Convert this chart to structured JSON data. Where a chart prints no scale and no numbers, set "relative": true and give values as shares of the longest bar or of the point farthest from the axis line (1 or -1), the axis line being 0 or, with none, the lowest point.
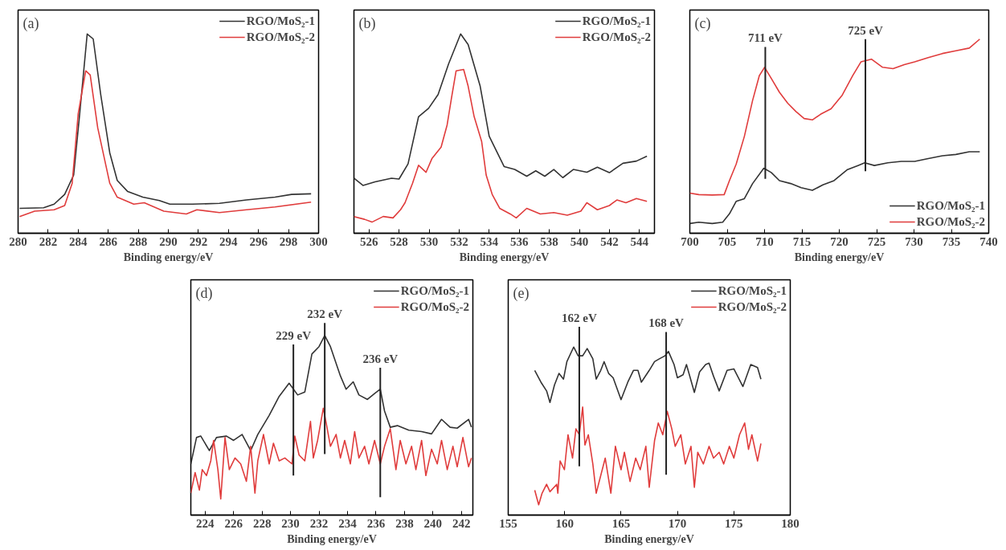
{
  "chart_data": [
    {
      "type": "line",
      "title": "(a)",
      "xlabel": "Binding energy/eV",
      "relative": true,
      "xlim": [
        280,
        300
      ],
      "xticks": [
        280,
        282,
        284,
        286,
        288,
        290,
        292,
        294,
        296,
        298,
        300
      ],
      "grid": false,
      "legend": "top right",
      "marker": "none",
      "line_style": "solid",
      "series": [
        {
          "name": "RGO/MoS₂-1",
          "color": "#333333",
          "x": [
            280.1,
            281.7,
            282.4,
            283.1,
            283.7,
            284.1,
            284.6,
            285.0,
            285.5,
            286.1,
            286.6,
            287.3,
            288.3,
            289.4,
            290.1,
            291.6,
            293.4,
            295.2,
            297.1,
            298.2,
            299.5
          ],
          "values": [
            0.125,
            0.128,
            0.146,
            0.195,
            0.292,
            0.599,
            1.0,
            0.975,
            0.696,
            0.404,
            0.265,
            0.209,
            0.181,
            0.164,
            0.146,
            0.146,
            0.15,
            0.167,
            0.181,
            0.195,
            0.198
          ]
        },
        {
          "name": "RGO/MoS₂-2",
          "color": "#e03c3c",
          "x": [
            280.1,
            281.1,
            282.4,
            283.1,
            283.6,
            284.0,
            284.5,
            284.8,
            285.3,
            286.1,
            286.6,
            287.7,
            288.4,
            289.7,
            291.2,
            291.9,
            293.4,
            295.2,
            297.1,
            299.5
          ],
          "values": [
            0.084,
            0.111,
            0.118,
            0.139,
            0.251,
            0.599,
            0.815,
            0.794,
            0.529,
            0.251,
            0.181,
            0.146,
            0.153,
            0.111,
            0.097,
            0.118,
            0.104,
            0.118,
            0.132,
            0.156
          ]
        }
      ]
    },
    {
      "type": "line",
      "title": "(b)",
      "xlabel": "Binding energy/eV",
      "relative": true,
      "xlim": [
        525,
        545
      ],
      "xticks": [
        526,
        528,
        530,
        532,
        534,
        536,
        538,
        540,
        542,
        544
      ],
      "grid": false,
      "legend": "top right",
      "marker": "none",
      "line_style": "solid",
      "series": [
        {
          "name": "RGO/MoS₂-1",
          "color": "#333333",
          "x": [
            525.0,
            525.6,
            526.4,
            527.5,
            528.0,
            528.6,
            529.3,
            529.97,
            530.6,
            531.3,
            532.1,
            532.6,
            533.4,
            534.0,
            535.0,
            535.7,
            536.5,
            537.1,
            537.7,
            538.3,
            538.9,
            539.6,
            540.5,
            541.2,
            542.0,
            542.9,
            543.8,
            544.5
          ],
          "values": [
            0.276,
            0.24,
            0.258,
            0.276,
            0.272,
            0.348,
            0.585,
            0.627,
            0.696,
            0.85,
            1.0,
            0.947,
            0.738,
            0.487,
            0.334,
            0.32,
            0.286,
            0.313,
            0.286,
            0.32,
            0.279,
            0.32,
            0.306,
            0.331,
            0.304,
            0.351,
            0.362,
            0.387
          ]
        },
        {
          "name": "RGO/MoS₂-2",
          "color": "#e03c3c",
          "x": [
            525.0,
            525.7,
            526.2,
            526.95,
            527.6,
            528.1,
            528.4,
            528.9,
            529.3,
            529.8,
            530.2,
            530.8,
            531.2,
            531.5,
            531.8,
            532.3,
            532.6,
            533.0,
            533.5,
            533.8,
            534.2,
            534.7,
            535.4,
            535.8,
            536.5,
            537.4,
            538.3,
            539.2,
            540.1,
            540.5,
            541.2,
            542.0,
            542.5,
            543.1,
            543.8,
            544.5
          ],
          "values": [
            0.084,
            0.07,
            0.056,
            0.084,
            0.077,
            0.118,
            0.153,
            0.251,
            0.341,
            0.306,
            0.376,
            0.432,
            0.543,
            0.682,
            0.815,
            0.822,
            0.738,
            0.585,
            0.46,
            0.292,
            0.195,
            0.125,
            0.097,
            0.077,
            0.125,
            0.097,
            0.104,
            0.091,
            0.111,
            0.153,
            0.118,
            0.139,
            0.167,
            0.153,
            0.174,
            0.16
          ]
        }
      ]
    },
    {
      "type": "line",
      "title": "(c)",
      "xlabel": "Binding energy/eV",
      "relative": true,
      "xlim": [
        700,
        740
      ],
      "xticks": [
        700,
        705,
        710,
        715,
        720,
        725,
        730,
        735,
        740
      ],
      "grid": false,
      "legend": "bottom right",
      "marker": "none",
      "line_style": "solid",
      "ref_lines": [
        {
          "axis": "x",
          "value": 710.1,
          "label": "711 eV"
        },
        {
          "axis": "x",
          "value": 723.5,
          "label": "725 eV"
        }
      ],
      "series": [
        {
          "name": "RGO/MoS₂-1",
          "color": "#333333",
          "x": [
            700.0,
            701.2,
            703.0,
            704.4,
            705.3,
            706.2,
            707.3,
            708.4,
            709.9,
            710.9,
            712.0,
            713.5,
            714.9,
            716.4,
            717.8,
            719.3,
            721.1,
            722.5,
            723.4,
            724.7,
            726.5,
            728.3,
            730.1,
            731.9,
            733.8,
            735.6,
            737.4,
            738.8
          ],
          "values": [
            0.05,
            0.057,
            0.05,
            0.057,
            0.1,
            0.164,
            0.178,
            0.256,
            0.335,
            0.313,
            0.271,
            0.256,
            0.235,
            0.221,
            0.249,
            0.271,
            0.328,
            0.349,
            0.363,
            0.349,
            0.363,
            0.37,
            0.37,
            0.385,
            0.399,
            0.406,
            0.42,
            0.42
          ]
        },
        {
          "name": "RGO/MoS₂-2",
          "color": "#e03c3c",
          "x": [
            700.0,
            701.2,
            703.0,
            704.6,
            705.3,
            706.2,
            707.3,
            708.4,
            709.3,
            710.0,
            710.9,
            712.0,
            713.1,
            714.2,
            715.3,
            716.4,
            717.5,
            718.9,
            720.4,
            721.8,
            722.9,
            724.3,
            725.8,
            727.2,
            728.7,
            730.1,
            731.9,
            733.8,
            735.6,
            737.4,
            738.8
          ],
          "values": [
            0.207,
            0.199,
            0.197,
            0.199,
            0.271,
            0.356,
            0.499,
            0.684,
            0.812,
            0.855,
            0.798,
            0.726,
            0.67,
            0.627,
            0.591,
            0.584,
            0.613,
            0.641,
            0.712,
            0.812,
            0.883,
            0.897,
            0.855,
            0.848,
            0.869,
            0.883,
            0.905,
            0.926,
            0.94,
            0.954,
            1.0
          ]
        }
      ]
    },
    {
      "type": "line",
      "title": "(d)",
      "xlabel": "Binding energy/eV",
      "relative": true,
      "xlim": [
        223,
        242.8
      ],
      "xticks": [
        224,
        226,
        228,
        230,
        232,
        234,
        236,
        238,
        240,
        242
      ],
      "grid": false,
      "legend": "top right",
      "marker": "none",
      "line_style": "solid",
      "ref_lines": [
        {
          "axis": "x",
          "value": 230.2,
          "label": "229 eV"
        },
        {
          "axis": "x",
          "value": 232.4,
          "label": "232 eV"
        },
        {
          "axis": "x",
          "value": 236.3,
          "label": "236 eV"
        }
      ],
      "series": [
        {
          "name": "RGO/MoS₂-1",
          "color": "#333333",
          "x": [
            223.0,
            223.4,
            223.7,
            224.3,
            224.8,
            225.5,
            226.0,
            226.6,
            227.2,
            227.7,
            228.5,
            229.2,
            229.9,
            230.5,
            231.0,
            231.5,
            232.0,
            232.4,
            232.8,
            233.5,
            233.9,
            234.4,
            234.8,
            235.4,
            235.9,
            236.3,
            236.6,
            237.0,
            237.5,
            238.3,
            239.2,
            239.9,
            240.6,
            241.2,
            241.7,
            242.5,
            242.7
          ],
          "values": [
            0.285,
            0.432,
            0.44,
            0.359,
            0.432,
            0.44,
            0.416,
            0.449,
            0.359,
            0.449,
            0.555,
            0.661,
            0.734,
            0.669,
            0.685,
            0.897,
            0.938,
            1.0,
            0.938,
            0.775,
            0.701,
            0.742,
            0.669,
            0.644,
            0.677,
            0.701,
            0.579,
            0.489,
            0.498,
            0.473,
            0.465,
            0.452,
            0.533,
            0.489,
            0.484,
            0.533,
            0.49
          ]
        },
        {
          "name": "RGO/MoS₂-2",
          "color": "#e03c3c",
          "x": [
            223.0,
            223.3,
            223.6,
            223.8,
            224.1,
            224.4,
            224.6,
            224.9,
            225.1,
            225.4,
            225.7,
            226.1,
            226.5,
            226.9,
            227.2,
            227.5,
            227.7,
            228.1,
            228.5,
            228.8,
            229.2,
            229.6,
            230.1,
            230.3,
            230.6,
            231.0,
            231.4,
            231.6,
            231.9,
            232.3,
            232.5,
            232.8,
            233.2,
            233.5,
            233.8,
            234.2,
            234.5,
            234.8,
            235.2,
            235.5,
            235.9,
            236.3,
            236.6,
            237.0,
            237.4,
            237.7,
            238.1,
            238.5,
            238.8,
            239.2,
            239.5,
            239.9,
            240.3,
            240.6,
            241.0,
            241.4,
            241.7,
            242.1,
            242.5,
            242.7
          ],
          "values": [
            0.122,
            0.237,
            0.139,
            0.253,
            0.22,
            0.302,
            0.416,
            0.253,
            0.09,
            0.432,
            0.253,
            0.318,
            0.285,
            0.188,
            0.383,
            0.122,
            0.302,
            0.449,
            0.285,
            0.4,
            0.302,
            0.318,
            0.285,
            0.44,
            0.334,
            0.302,
            0.522,
            0.318,
            0.416,
            0.595,
            0.514,
            0.383,
            0.449,
            0.318,
            0.416,
            0.285,
            0.465,
            0.318,
            0.383,
            0.285,
            0.416,
            0.285,
            0.383,
            0.481,
            0.253,
            0.416,
            0.285,
            0.383,
            0.253,
            0.416,
            0.22,
            0.367,
            0.285,
            0.416,
            0.253,
            0.383,
            0.269,
            0.432,
            0.269,
            0.318
          ]
        }
      ]
    },
    {
      "type": "line",
      "title": "(e)",
      "xlabel": "Binding energy/eV",
      "relative": true,
      "xlim": [
        155,
        180
      ],
      "xticks": [
        155,
        160,
        165,
        170,
        175,
        180
      ],
      "grid": false,
      "legend": "top right",
      "marker": "none",
      "line_style": "solid",
      "ref_lines": [
        {
          "axis": "x",
          "value": 161.3,
          "label": "162 eV"
        },
        {
          "axis": "x",
          "value": 169.0,
          "label": "168 eV"
        }
      ],
      "series": [
        {
          "name": "RGO/MoS₂-1",
          "color": "#333333",
          "x": [
            157.35,
            157.9,
            158.4,
            158.7,
            159.1,
            159.5,
            159.9,
            160.2,
            160.8,
            161.2,
            161.6,
            162.0,
            162.5,
            162.8,
            163.2,
            163.5,
            163.9,
            164.3,
            165.0,
            165.6,
            166.1,
            166.5,
            166.8,
            167.5,
            167.97,
            168.4,
            168.9,
            169.2,
            169.7,
            170.0,
            170.5,
            170.8,
            171.5,
            171.96,
            172.5,
            172.8,
            173.2,
            173.7,
            174.4,
            175.0,
            175.8,
            176.5,
            177.1,
            177.4
          ],
          "values": [
            0.861,
            0.791,
            0.739,
            0.67,
            0.774,
            0.843,
            0.809,
            0.913,
            1.0,
            0.948,
            0.948,
            0.991,
            0.93,
            0.809,
            0.861,
            0.913,
            0.843,
            0.817,
            0.687,
            0.791,
            0.861,
            0.861,
            0.791,
            0.861,
            0.913,
            0.93,
            0.948,
            0.974,
            0.896,
            0.817,
            0.835,
            0.896,
            0.73,
            0.852,
            0.896,
            0.904,
            0.826,
            0.739,
            0.861,
            0.87,
            0.765,
            0.896,
            0.878,
            0.809
          ]
        },
        {
          "name": "RGO/MoS₂-2",
          "color": "#e03c3c",
          "x": [
            157.35,
            157.7,
            158.0,
            158.4,
            158.7,
            159.3,
            159.4,
            159.6,
            159.98,
            160.3,
            160.7,
            161.0,
            161.3,
            161.6,
            161.8,
            162.1,
            162.5,
            162.8,
            163.2,
            163.6,
            164.1,
            164.5,
            165.0,
            165.3,
            165.8,
            166.3,
            166.7,
            167.2,
            167.5,
            167.97,
            168.3,
            168.7,
            169.1,
            169.5,
            169.8,
            170.3,
            170.7,
            171.2,
            171.5,
            171.8,
            172.3,
            172.8,
            173.2,
            173.7,
            174.1,
            174.6,
            175.0,
            175.5,
            175.96,
            176.3,
            176.6,
            177.1,
            177.4
          ],
          "values": [
            0.148,
            0.061,
            0.13,
            0.183,
            0.139,
            0.183,
            0.13,
            0.322,
            0.27,
            0.478,
            0.339,
            0.513,
            0.478,
            0.643,
            0.417,
            0.478,
            0.304,
            0.13,
            0.235,
            0.339,
            0.13,
            0.409,
            0.27,
            0.374,
            0.2,
            0.339,
            0.27,
            0.409,
            0.165,
            0.443,
            0.548,
            0.478,
            0.617,
            0.513,
            0.409,
            0.478,
            0.304,
            0.409,
            0.165,
            0.374,
            0.304,
            0.409,
            0.339,
            0.374,
            0.304,
            0.409,
            0.339,
            0.478,
            0.548,
            0.391,
            0.478,
            0.322,
            0.426
          ]
        }
      ]
    }
  ]
}
